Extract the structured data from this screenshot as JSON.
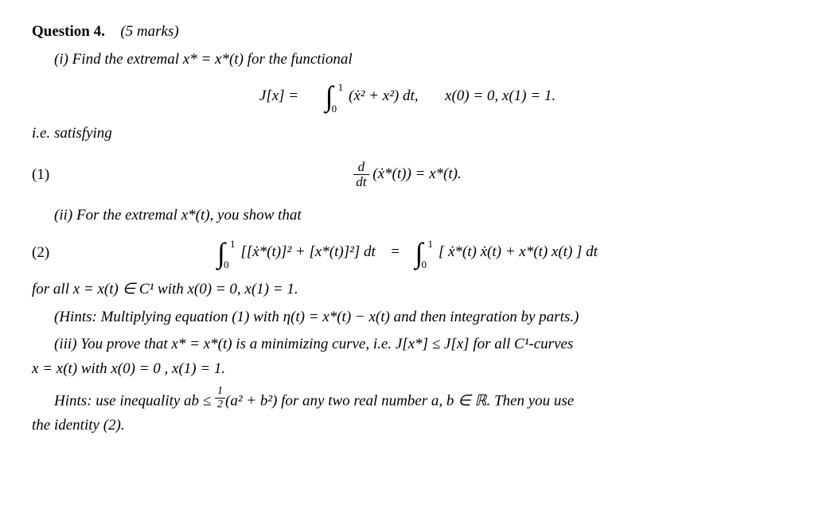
{
  "q": {
    "title_bold": "Question 4.",
    "title_marks": "(5 marks)",
    "part_i": "(i) Find the extremal x* = x*(t) for the functional",
    "eq_J_lhs": "J[x] =",
    "int_lo": "0",
    "int_hi": "1",
    "eq_J_integrand": "(ẋ² + x²) dt,",
    "eq_J_bc": "x(0) = 0,  x(1) = 1.",
    "ie": "i.e. satisfying",
    "eq1_label": "(1)",
    "eq1_frac_num": "d",
    "eq1_frac_den": "dt",
    "eq1_body": "(ẋ*(t)) = x*(t).",
    "part_ii": "(ii) For the extremal x*(t), you show that",
    "eq2_label": "(2)",
    "eq2_left_integrand": "[[ẋ*(t)]² + [x*(t)]²] dt",
    "eq2_eqsign": "=",
    "eq2_right_integrand": "[ ẋ*(t) ẋ(t) + x*(t) x(t) ] dt",
    "for_all": "for all x = x(t) ∈ C¹ with x(0) = 0,  x(1) = 1.",
    "hints_ii": "(Hints: Multiplying equation (1) with η(t) = x*(t) − x(t) and then integration by parts.)",
    "part_iii_a": "(iii) You prove that x* = x*(t) is a minimizing curve, i.e. J[x*] ≤ J[x] for all C¹-curves",
    "part_iii_b": "x = x(t) with x(0) = 0 ,  x(1) = 1.",
    "hints_iii_a": "Hints: use inequality ab ≤ ",
    "hints_iii_frac_num": "1",
    "hints_iii_frac_den": "2",
    "hints_iii_b": "(a² + b²) for any two real number a, b ∈ ℝ.  Then you use",
    "hints_iii_c": "the identity (2)."
  }
}
